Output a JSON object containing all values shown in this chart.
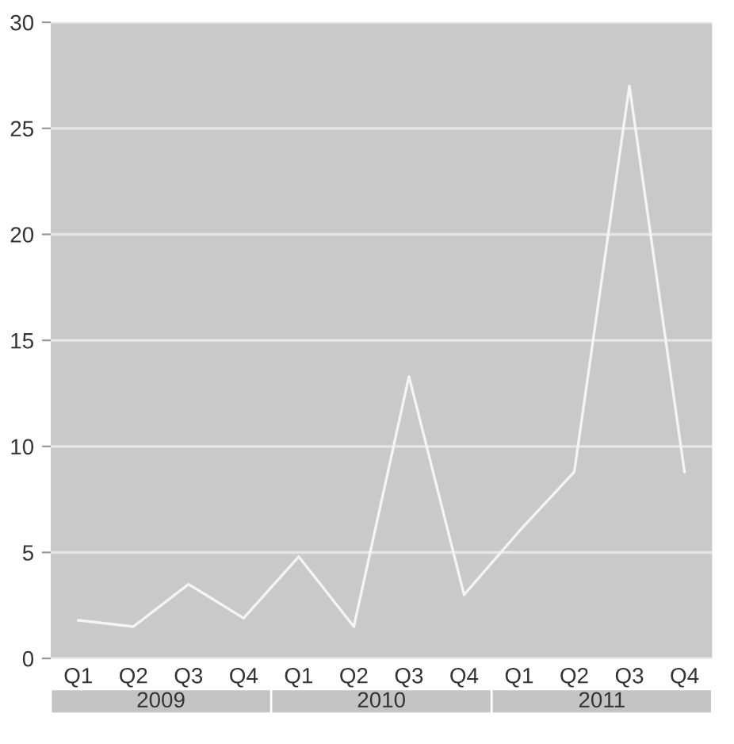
{
  "chart_data": {
    "type": "line",
    "categories": [
      "Q1",
      "Q2",
      "Q3",
      "Q4",
      "Q1",
      "Q2",
      "Q3",
      "Q4",
      "Q1",
      "Q2",
      "Q3",
      "Q4"
    ],
    "series": [
      {
        "color": "#f4f4f4",
        "values": [
          1.8,
          1.5,
          3.5,
          1.9,
          4.8,
          1.5,
          13.3,
          3.0,
          6.0,
          8.8,
          27,
          8.8
        ]
      }
    ],
    "ylim": [
      0,
      30
    ],
    "yticks": [
      0,
      5,
      10,
      15,
      20,
      25,
      30
    ],
    "grid": "y",
    "legend": false,
    "annotations": [
      "2009",
      "2010",
      "2011"
    ]
  }
}
